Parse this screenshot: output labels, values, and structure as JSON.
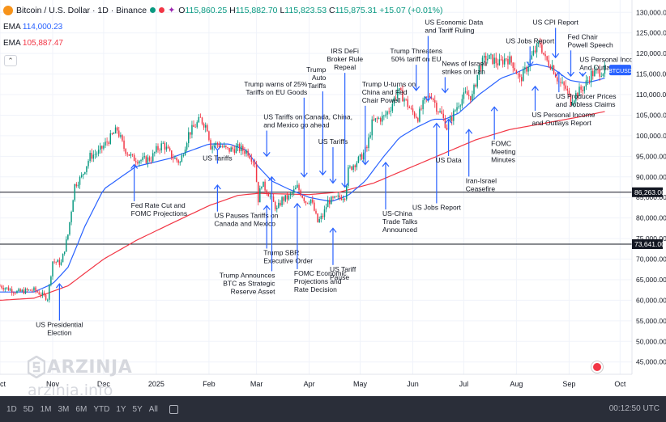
{
  "header": {
    "symbol": "Bitcoin / U.S. Dollar · 1D · Binance",
    "o_label": "O",
    "o": "115,860.25",
    "h_label": "H",
    "h": "115,882.70",
    "l_label": "L",
    "l": "115,823.53",
    "c_label": "C",
    "c": "115,875.31",
    "change": "+15.07 (+0.01%)"
  },
  "indicators": [
    {
      "name": "EMA",
      "value": "114,000.23",
      "color": "#2962ff"
    },
    {
      "name": "EMA",
      "value": "105,887.47",
      "color": "#f23645"
    }
  ],
  "colors": {
    "up": "#089981",
    "down": "#f23645",
    "ema_fast": "#2962ff",
    "ema_slow": "#f23645",
    "annotation": "#2962ff"
  },
  "chart_data": {
    "type": "candlestick",
    "y_axis_ticks": [
      "130,000.00",
      "125,000.00",
      "120,000.00",
      "115,000.00",
      "110,000.00",
      "105,000.00",
      "100,000.00",
      "95,000.00",
      "90,000.00",
      "85,000.00",
      "80,000.00",
      "75,000.00",
      "70,000.00",
      "65,000.00",
      "60,000.00",
      "55,000.00",
      "50,000.00",
      "45,000.00"
    ],
    "ylim": [
      42000,
      133000
    ],
    "x_axis_labels": [
      "Oct",
      "Nov",
      "Dec",
      "2025",
      "Feb",
      "Mar",
      "Apr",
      "May",
      "Jun",
      "Jul",
      "Aug",
      "Sep",
      "Oct"
    ],
    "x_axis_values": [
      0,
      31,
      61,
      92,
      123,
      151,
      182,
      212,
      243,
      273,
      304,
      335,
      365
    ],
    "x_range": [
      0,
      372
    ],
    "candle_count": 357,
    "horizontal_levels": [
      {
        "value": 86263,
        "label": "86,263.00"
      },
      {
        "value": 73641,
        "label": "73,641.00"
      }
    ],
    "price_label": {
      "text": "BTCUSD",
      "value": 115875
    },
    "close_path": [
      [
        0,
        63500
      ],
      [
        10,
        62000
      ],
      [
        20,
        62500
      ],
      [
        28,
        60500
      ],
      [
        31,
        69500
      ],
      [
        36,
        69000
      ],
      [
        40,
        76000
      ],
      [
        44,
        88000
      ],
      [
        48,
        90000
      ],
      [
        53,
        95000
      ],
      [
        58,
        96000
      ],
      [
        61,
        97500
      ],
      [
        66,
        100000
      ],
      [
        69,
        101500
      ],
      [
        73,
        97000
      ],
      [
        78,
        94500
      ],
      [
        84,
        94000
      ],
      [
        89,
        94500
      ],
      [
        92,
        96500
      ],
      [
        96,
        98000
      ],
      [
        101,
        95000
      ],
      [
        106,
        93500
      ],
      [
        111,
        100500
      ],
      [
        114,
        102000
      ],
      [
        118,
        104000
      ],
      [
        122,
        102000
      ],
      [
        124,
        97500
      ],
      [
        128,
        98000
      ],
      [
        134,
        96500
      ],
      [
        140,
        97000
      ],
      [
        146,
        96000
      ],
      [
        150,
        93500
      ],
      [
        152,
        84500
      ],
      [
        154,
        88500
      ],
      [
        158,
        86000
      ],
      [
        163,
        82000
      ],
      [
        166,
        84500
      ],
      [
        170,
        85000
      ],
      [
        175,
        87500
      ],
      [
        180,
        84000
      ],
      [
        183,
        84500
      ],
      [
        187,
        79000
      ],
      [
        190,
        80500
      ],
      [
        193,
        84000
      ],
      [
        197,
        84500
      ],
      [
        200,
        85000
      ],
      [
        203,
        85500
      ],
      [
        205,
        91500
      ],
      [
        208,
        93000
      ],
      [
        212,
        94500
      ],
      [
        216,
        97000
      ],
      [
        219,
        103000
      ],
      [
        222,
        104000
      ],
      [
        226,
        104500
      ],
      [
        230,
        107000
      ],
      [
        234,
        111000
      ],
      [
        238,
        109000
      ],
      [
        242,
        106000
      ],
      [
        246,
        104500
      ],
      [
        250,
        108500
      ],
      [
        254,
        110000
      ],
      [
        257,
        107000
      ],
      [
        260,
        105000
      ],
      [
        263,
        102000
      ],
      [
        266,
        104500
      ],
      [
        270,
        108000
      ],
      [
        274,
        110000
      ],
      [
        278,
        109500
      ],
      [
        282,
        116500
      ],
      [
        286,
        119000
      ],
      [
        290,
        118500
      ],
      [
        294,
        117500
      ],
      [
        298,
        119000
      ],
      [
        302,
        117500
      ],
      [
        306,
        113500
      ],
      [
        310,
        116500
      ],
      [
        314,
        120000
      ],
      [
        318,
        122500
      ],
      [
        321,
        118500
      ],
      [
        325,
        117000
      ],
      [
        329,
        113000
      ],
      [
        333,
        111500
      ],
      [
        336,
        108500
      ],
      [
        340,
        110500
      ],
      [
        344,
        112000
      ],
      [
        348,
        115000
      ],
      [
        352,
        115500
      ],
      [
        356,
        115900
      ]
    ],
    "ema_fast": [
      [
        0,
        62000
      ],
      [
        20,
        62000
      ],
      [
        31,
        64000
      ],
      [
        40,
        68000
      ],
      [
        50,
        78000
      ],
      [
        61,
        87000
      ],
      [
        80,
        92500
      ],
      [
        100,
        94500
      ],
      [
        123,
        98000
      ],
      [
        135,
        98000
      ],
      [
        145,
        96500
      ],
      [
        152,
        92500
      ],
      [
        160,
        89000
      ],
      [
        170,
        87000
      ],
      [
        182,
        85000
      ],
      [
        195,
        84000
      ],
      [
        205,
        85500
      ],
      [
        215,
        89000
      ],
      [
        225,
        94500
      ],
      [
        235,
        99500
      ],
      [
        245,
        102000
      ],
      [
        255,
        104000
      ],
      [
        262,
        104000
      ],
      [
        270,
        105500
      ],
      [
        282,
        110000
      ],
      [
        295,
        114000
      ],
      [
        305,
        115500
      ],
      [
        315,
        117500
      ],
      [
        325,
        116500
      ],
      [
        335,
        113500
      ],
      [
        345,
        112800
      ],
      [
        356,
        114000
      ]
    ],
    "ema_slow": [
      [
        0,
        60000
      ],
      [
        20,
        60500
      ],
      [
        40,
        63500
      ],
      [
        61,
        70000
      ],
      [
        80,
        74500
      ],
      [
        100,
        78500
      ],
      [
        123,
        83000
      ],
      [
        140,
        85500
      ],
      [
        152,
        86000
      ],
      [
        170,
        85800
      ],
      [
        182,
        85700
      ],
      [
        200,
        86300
      ],
      [
        220,
        88500
      ],
      [
        240,
        92000
      ],
      [
        260,
        95500
      ],
      [
        280,
        99000
      ],
      [
        300,
        101500
      ],
      [
        320,
        103000
      ],
      [
        340,
        104500
      ],
      [
        356,
        105900
      ]
    ],
    "annotations": [
      {
        "lines": [
          "US Presidential",
          "Election"
        ],
        "x": 35,
        "tip_value": 64000,
        "label_value": 53500,
        "anchor": "middle",
        "dir": "up"
      },
      {
        "lines": [
          "Fed Rate Cut and",
          "FOMC Projections"
        ],
        "x": 79,
        "tip_value": 93000,
        "label_value": 82500,
        "anchor": "start",
        "dir": "up"
      },
      {
        "lines": [
          "US Tariffs"
        ],
        "x": 128,
        "tip_value": 96500,
        "label_value": 94000,
        "anchor": "middle",
        "dir": "down"
      },
      {
        "lines": [
          "US Pauses Tariffs on",
          "Canada and Mexico"
        ],
        "x": 128,
        "tip_value": 88000,
        "label_value": 80000,
        "anchor": "start",
        "dir": "up"
      },
      {
        "lines": [
          "US Tariffs on Canada, China,",
          "and Mexico go ahead"
        ],
        "x": 157,
        "tip_value": 95000,
        "label_value": 104000,
        "anchor": "start",
        "dir": "down"
      },
      {
        "lines": [
          "Trump SBR",
          "Executive Order"
        ],
        "x": 157,
        "tip_value": 83000,
        "label_value": 71000,
        "anchor": "start",
        "dir": "up"
      },
      {
        "lines": [
          "Trump Announces",
          "BTC as Strategic",
          "Reserve Asset"
        ],
        "x": 160,
        "tip_value": 90000,
        "label_value": 65500,
        "anchor": "end",
        "dir": "up"
      },
      {
        "lines": [
          "Trump warns of 25%",
          "Tariffs on EU Goods"
        ],
        "x": 179,
        "tip_value": 90000,
        "label_value": 112000,
        "anchor": "end",
        "dir": "down"
      },
      {
        "lines": [
          "FOMC Economic",
          "Projections and",
          "Rate Decision"
        ],
        "x": 175,
        "tip_value": 83500,
        "label_value": 66000,
        "anchor": "start",
        "dir": "up"
      },
      {
        "lines": [
          "Trump",
          "Auto",
          "Tariffs"
        ],
        "x": 190,
        "tip_value": 90500,
        "label_value": 115500,
        "anchor": "end",
        "dir": "down"
      },
      {
        "lines": [
          "US Tariffs"
        ],
        "x": 196,
        "tip_value": 88500,
        "label_value": 98000,
        "anchor": "middle",
        "dir": "down"
      },
      {
        "lines": [
          "US Tariff",
          "Pause"
        ],
        "x": 196,
        "tip_value": 77500,
        "label_value": 67000,
        "anchor": "start",
        "dir": "up"
      },
      {
        "lines": [
          "IRS DeFi",
          "Broker Rule",
          "Repeal"
        ],
        "x": 203,
        "tip_value": 87500,
        "label_value": 120000,
        "anchor": "middle",
        "dir": "down"
      },
      {
        "lines": [
          "Trump U-turns on",
          "China and Fed",
          "Chair Powell"
        ],
        "x": 215,
        "tip_value": 93000,
        "label_value": 112000,
        "anchor": "start",
        "dir": "down"
      },
      {
        "lines": [
          "US-China",
          "Trade Talks",
          "Announced"
        ],
        "x": 227,
        "tip_value": 93500,
        "label_value": 80500,
        "anchor": "start",
        "dir": "up"
      },
      {
        "lines": [
          "Trump Threatens",
          "50% tariff on EU"
        ],
        "x": 245,
        "tip_value": 111000,
        "label_value": 120000,
        "anchor": "middle",
        "dir": "down"
      },
      {
        "lines": [
          "US Economic Data",
          "and Tariff Ruling"
        ],
        "x": 252,
        "tip_value": 108500,
        "label_value": 127000,
        "anchor": "start",
        "dir": "down"
      },
      {
        "lines": [
          "US Jobs Report"
        ],
        "x": 257,
        "tip_value": 103000,
        "label_value": 82000,
        "anchor": "middle",
        "dir": "up"
      },
      {
        "lines": [
          "News of Israeli",
          "strikes on Iran"
        ],
        "x": 262,
        "tip_value": 110500,
        "label_value": 117000,
        "anchor": "start",
        "dir": "down"
      },
      {
        "lines": [
          "US Data"
        ],
        "x": 264,
        "tip_value": 104000,
        "label_value": 93500,
        "anchor": "middle",
        "dir": "up"
      },
      {
        "lines": [
          "Iran-Israel",
          "Ceasefire"
        ],
        "x": 276,
        "tip_value": 101500,
        "label_value": 88500,
        "anchor": "start",
        "dir": "up"
      },
      {
        "lines": [
          "FOMC",
          "Meeting",
          "Minutes"
        ],
        "x": 291,
        "tip_value": 107000,
        "label_value": 97500,
        "anchor": "start",
        "dir": "up"
      },
      {
        "lines": [
          "US Jobs Report"
        ],
        "x": 312,
        "tip_value": 117000,
        "label_value": 122500,
        "anchor": "middle",
        "dir": "down"
      },
      {
        "lines": [
          "US Personal Income",
          "and Outlays Report"
        ],
        "x": 315,
        "tip_value": 112000,
        "label_value": 104500,
        "anchor": "start",
        "dir": "up"
      },
      {
        "lines": [
          "US CPI Report"
        ],
        "x": 327,
        "tip_value": 119000,
        "label_value": 127000,
        "anchor": "middle",
        "dir": "down"
      },
      {
        "lines": [
          "US Producer Prices",
          "and Jobless Claims"
        ],
        "x": 329,
        "tip_value": 115500,
        "label_value": 109000,
        "anchor": "start",
        "dir": "up"
      },
      {
        "lines": [
          "Fed Chair",
          "Powell Speech"
        ],
        "x": 336,
        "tip_value": 114500,
        "label_value": 123500,
        "anchor": "start",
        "dir": "down"
      },
      {
        "lines": [
          "US Personal Income",
          "And Outlays Report"
        ],
        "x": 343,
        "tip_value": 114500,
        "label_value": 118000,
        "anchor": "start",
        "dir": "down"
      }
    ]
  },
  "watermark": {
    "brand": "ARZINJA",
    "url": "arzinja.info"
  },
  "bottombar": {
    "ranges": [
      "1D",
      "5D",
      "1M",
      "3M",
      "6M",
      "YTD",
      "1Y",
      "5Y",
      "All"
    ],
    "clock": "00:12:50 UTC"
  }
}
